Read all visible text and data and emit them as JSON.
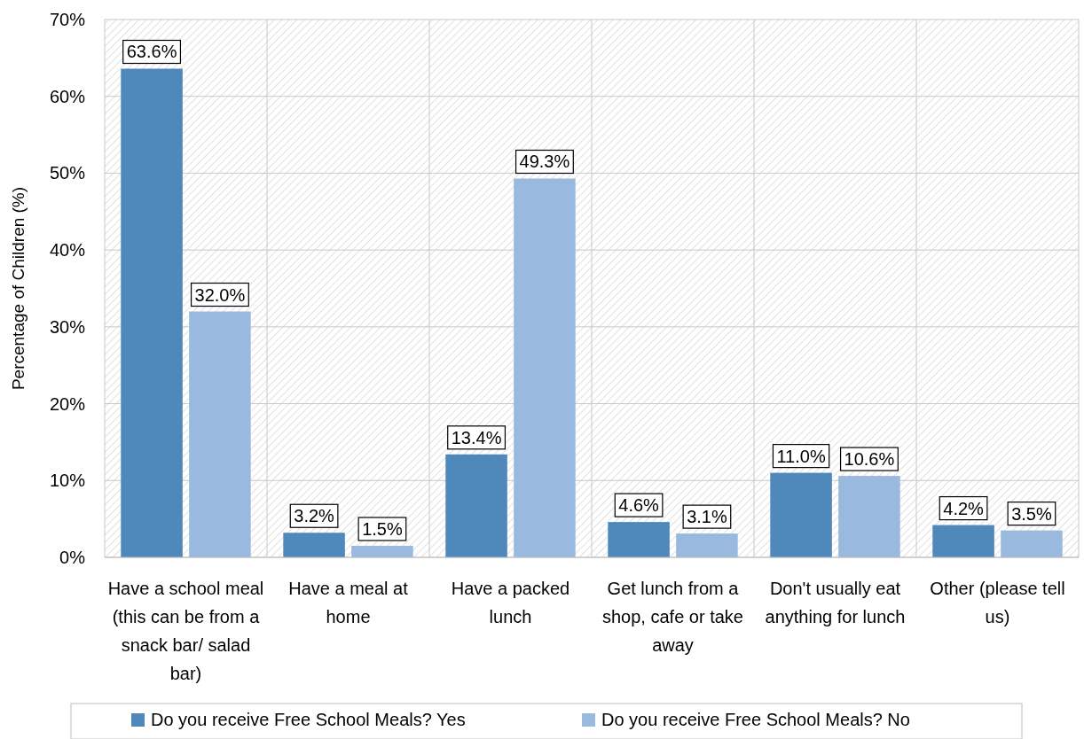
{
  "chart_data": {
    "type": "bar",
    "ylabel": "Percentage of Children (%)",
    "categories": [
      "Have a school meal (this can be from a snack bar/ salad bar)",
      "Have a meal at home",
      "Have a packed lunch",
      "Get lunch from a shop, cafe or take away",
      "Don't usually eat anything for lunch",
      "Other (please tell us)"
    ],
    "series": [
      {
        "name": "Do you receive Free School Meals? Yes",
        "color": "#4f88bb",
        "values": [
          63.6,
          3.2,
          13.4,
          4.6,
          11.0,
          4.2
        ],
        "value_labels": [
          "63.6%",
          "3.2%",
          "13.4%",
          "4.6%",
          "11.0%",
          "4.2%"
        ]
      },
      {
        "name": "Do you receive Free School Meals? No",
        "color": "#9ab9df",
        "values": [
          32.0,
          1.5,
          49.3,
          3.1,
          10.6,
          3.5
        ],
        "value_labels": [
          "32.0%",
          "1.5%",
          "49.3%",
          "3.1%",
          "10.6%",
          "3.5%"
        ]
      }
    ],
    "ylim": [
      0,
      70
    ],
    "yticks": [
      {
        "value": 0,
        "label": "0%"
      },
      {
        "value": 10,
        "label": "10%"
      },
      {
        "value": 20,
        "label": "20%"
      },
      {
        "value": 30,
        "label": "30%"
      },
      {
        "value": 40,
        "label": "40%"
      },
      {
        "value": 50,
        "label": "50%"
      },
      {
        "value": 60,
        "label": "60%"
      },
      {
        "value": 70,
        "label": "70%"
      }
    ],
    "grid": true,
    "legend": "bottom"
  }
}
